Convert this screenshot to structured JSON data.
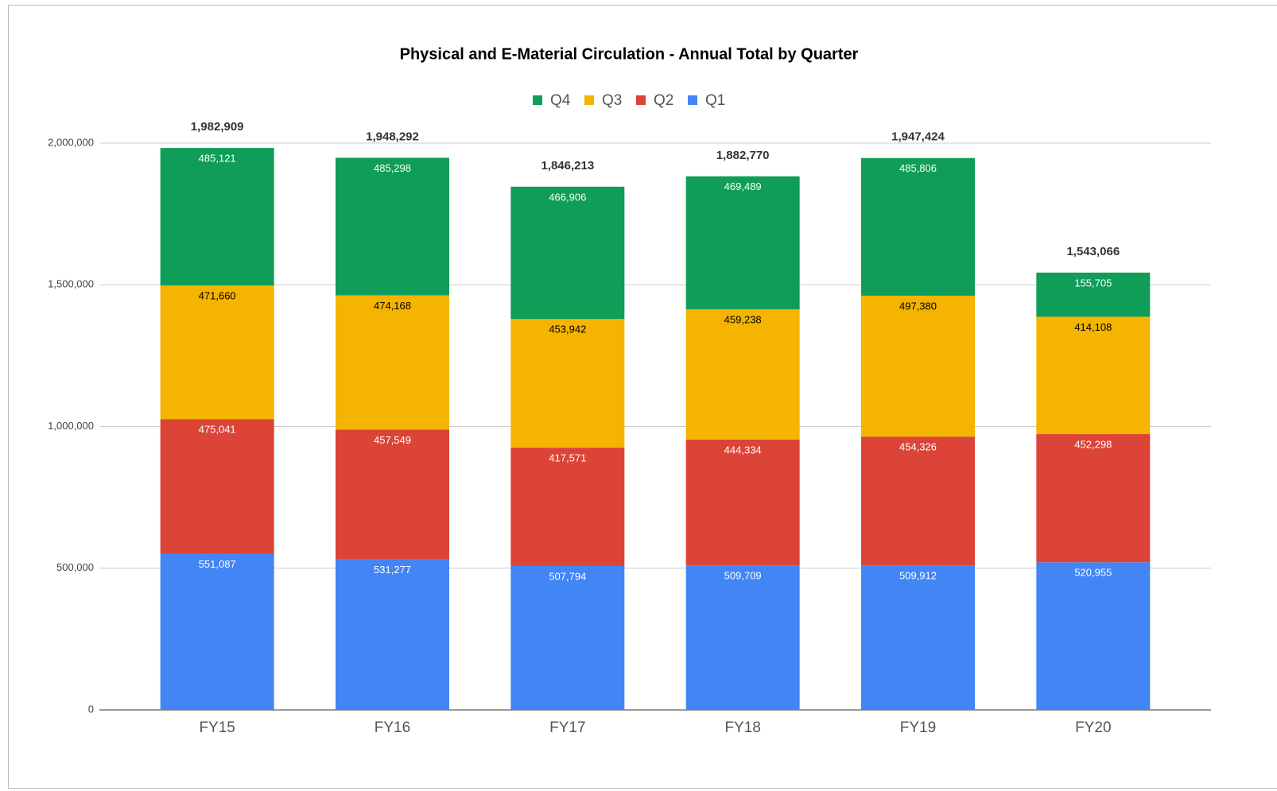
{
  "chart_data": {
    "type": "stacked_bar",
    "title": "Physical and E-Material Circulation - Annual Total by Quarter",
    "categories": [
      "FY15",
      "FY16",
      "FY17",
      "FY18",
      "FY19",
      "FY20"
    ],
    "series": [
      {
        "name": "Q1",
        "color": "#4285f4",
        "values": [
          551087,
          531277,
          507794,
          509709,
          509912,
          520955
        ],
        "value_labels": [
          "551,087",
          "531,277",
          "507,794",
          "509,709",
          "509,912",
          "520,955"
        ]
      },
      {
        "name": "Q2",
        "color": "#db4437",
        "values": [
          475041,
          457549,
          417571,
          444334,
          454326,
          452298
        ],
        "value_labels": [
          "475,041",
          "457,549",
          "417,571",
          "444,334",
          "454,326",
          "452,298"
        ]
      },
      {
        "name": "Q3",
        "color": "#f4b400",
        "values": [
          471660,
          474168,
          453942,
          459238,
          497380,
          414108
        ],
        "value_labels": [
          "471,660",
          "474,168",
          "453,942",
          "459,238",
          "497,380",
          "414,108"
        ]
      },
      {
        "name": "Q4",
        "color": "#0f9d58",
        "values": [
          485121,
          485298,
          466906,
          469489,
          485806,
          155705
        ],
        "value_labels": [
          "485,121",
          "485,298",
          "466,906",
          "469,489",
          "485,806",
          "155,705"
        ]
      }
    ],
    "totals": [
      1982909,
      1948292,
      1846213,
      1882770,
      1947424,
      1543066
    ],
    "total_labels": [
      "1,982,909",
      "1,948,292",
      "1,846,213",
      "1,882,770",
      "1,947,424",
      "1,543,066"
    ],
    "ylim": [
      0,
      2000000
    ],
    "yticks": [
      0,
      {
        "value": 500000,
        "label": "500,000"
      },
      {
        "value": 1000000,
        "label": "1,000,000"
      },
      {
        "value": 1500000,
        "label": "1,500,000"
      },
      {
        "value": 2000000,
        "label": "2,000,000"
      }
    ],
    "grid": true,
    "legend": "top"
  }
}
